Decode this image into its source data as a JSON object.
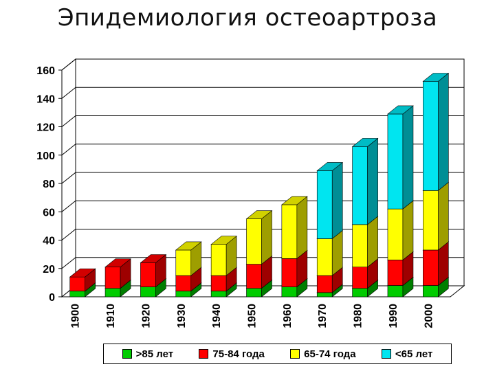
{
  "title": "Эпидемиология остеоартроза",
  "chart_data": {
    "type": "bar",
    "stacked": true,
    "three_d": true,
    "title": "",
    "xlabel": "",
    "ylabel": "",
    "ylim": [
      0,
      160
    ],
    "y_ticks": [
      0,
      20,
      40,
      60,
      80,
      100,
      120,
      140,
      160
    ],
    "grid": true,
    "legend_position": "bottom",
    "categories": [
      "1900",
      "1910",
      "1920",
      "1930",
      "1940",
      "1950",
      "1960",
      "1970",
      "1980",
      "1990",
      "2000"
    ],
    "series": [
      {
        "name": ">85 лет",
        "color": "#00cc00",
        "values": [
          4,
          6,
          7,
          4,
          4,
          6,
          7,
          3,
          6,
          8,
          8
        ]
      },
      {
        "name": "75-84 года",
        "color": "#ff0000",
        "values": [
          10,
          15,
          17,
          11,
          11,
          17,
          20,
          12,
          15,
          18,
          25
        ]
      },
      {
        "name": "65-74 года",
        "color": "#ffff00",
        "values": [
          0,
          0,
          0,
          18,
          22,
          32,
          38,
          26,
          30,
          36,
          42
        ]
      },
      {
        "name": "<65 лет",
        "color": "#00e5f0",
        "values": [
          0,
          0,
          0,
          0,
          0,
          0,
          0,
          48,
          55,
          67,
          77
        ]
      }
    ]
  }
}
